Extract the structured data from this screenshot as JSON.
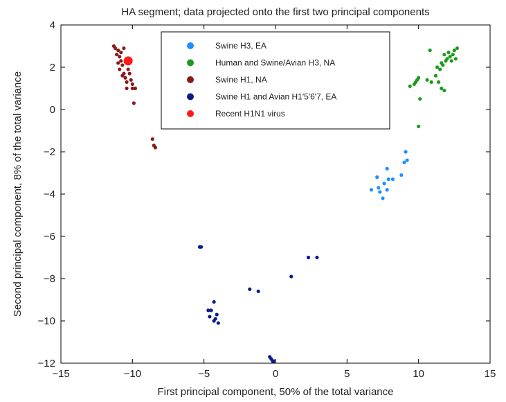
{
  "chart_data": {
    "type": "scatter",
    "title": "HA segment; data projected onto the first two principal components",
    "xlabel": "First principal component, 50% of the total variance",
    "ylabel": "Second principal component, 8% of the total variance",
    "xlim": [
      -15,
      15
    ],
    "ylim": [
      -12,
      4
    ],
    "xticks": [
      -15,
      -10,
      -5,
      0,
      5,
      10,
      15
    ],
    "yticks": [
      -12,
      -10,
      -8,
      -6,
      -4,
      -2,
      0,
      2,
      4
    ],
    "grid": false,
    "legend_position": "top",
    "series": [
      {
        "name": "Swine H3, EA",
        "color": "#1f8fff",
        "points": [
          [
            6.7,
            -3.8
          ],
          [
            7.1,
            -3.2
          ],
          [
            7.2,
            -3.7
          ],
          [
            7.3,
            -3.9
          ],
          [
            7.5,
            -4.2
          ],
          [
            7.6,
            -3.5
          ],
          [
            7.8,
            -3.8
          ],
          [
            7.9,
            -3.3
          ],
          [
            7.8,
            -2.8
          ],
          [
            8.2,
            -3.3
          ],
          [
            8.8,
            -3.1
          ],
          [
            9.0,
            -2.5
          ],
          [
            9.2,
            -2.4
          ],
          [
            9.1,
            -2.0
          ]
        ]
      },
      {
        "name": "Human and Swine/Avian H3, NA",
        "color": "#1f9a1f",
        "points": [
          [
            10.0,
            -0.8
          ],
          [
            10.1,
            0.5
          ],
          [
            9.8,
            1.3
          ],
          [
            9.9,
            1.4
          ],
          [
            10.0,
            1.5
          ],
          [
            9.4,
            1.1
          ],
          [
            9.7,
            1.2
          ],
          [
            10.6,
            1.4
          ],
          [
            10.8,
            2.8
          ],
          [
            10.9,
            1.3
          ],
          [
            11.2,
            1.6
          ],
          [
            11.6,
            1.0
          ],
          [
            11.8,
            0.9
          ],
          [
            11.5,
            1.9
          ],
          [
            11.7,
            2.1
          ],
          [
            11.9,
            2.3
          ],
          [
            11.8,
            2.6
          ],
          [
            12.0,
            2.4
          ],
          [
            12.1,
            2.7
          ],
          [
            12.2,
            2.5
          ],
          [
            12.3,
            2.3
          ],
          [
            12.4,
            2.6
          ],
          [
            12.5,
            2.8
          ],
          [
            12.6,
            2.4
          ],
          [
            12.7,
            2.9
          ],
          [
            11.4,
            1.3
          ],
          [
            11.3,
            2.0
          ],
          [
            11.6,
            2.2
          ]
        ]
      },
      {
        "name": "Swine H1, NA",
        "color": "#8b1a1a",
        "points": [
          [
            -11.3,
            3.0
          ],
          [
            -11.2,
            2.9
          ],
          [
            -11.0,
            2.8
          ],
          [
            -11.1,
            2.6
          ],
          [
            -10.9,
            2.5
          ],
          [
            -10.8,
            2.3
          ],
          [
            -10.7,
            2.1
          ],
          [
            -11.0,
            2.2
          ],
          [
            -10.9,
            1.9
          ],
          [
            -10.6,
            1.7
          ],
          [
            -10.5,
            1.5
          ],
          [
            -10.4,
            1.3
          ],
          [
            -10.7,
            1.6
          ],
          [
            -10.3,
            1.9
          ],
          [
            -10.2,
            1.7
          ],
          [
            -10.1,
            1.4
          ],
          [
            -10.0,
            1.2
          ],
          [
            -10.4,
            1.0
          ],
          [
            -10.0,
            1.0
          ],
          [
            -9.8,
            1.0
          ],
          [
            -9.9,
            0.3
          ],
          [
            -8.6,
            -1.4
          ],
          [
            -8.5,
            -1.7
          ],
          [
            -8.4,
            -1.8
          ],
          [
            -10.6,
            2.9
          ],
          [
            -10.8,
            2.7
          ]
        ]
      },
      {
        "name": "Swine H1 and Avian H1'5'6'7, EA",
        "color": "#0d1a8c",
        "points": [
          [
            -5.3,
            -6.5
          ],
          [
            -5.2,
            -6.5
          ],
          [
            -4.5,
            -9.5
          ],
          [
            -4.3,
            -9.1
          ],
          [
            -4.6,
            -9.8
          ],
          [
            -4.2,
            -9.9
          ],
          [
            -4.0,
            -10.1
          ],
          [
            -4.3,
            -10.0
          ],
          [
            -4.1,
            -9.7
          ],
          [
            -1.8,
            -8.5
          ],
          [
            -1.2,
            -8.6
          ],
          [
            1.1,
            -7.9
          ],
          [
            2.3,
            -7.0
          ],
          [
            2.9,
            -7.0
          ],
          [
            -0.4,
            -11.7
          ],
          [
            -0.3,
            -11.8
          ],
          [
            -0.2,
            -11.9
          ],
          [
            -0.1,
            -11.9
          ],
          [
            -4.7,
            -9.5
          ]
        ]
      },
      {
        "name": "Recent H1N1 virus",
        "color": "#ff1a1a",
        "points": [
          [
            -10.3,
            2.3
          ]
        ]
      }
    ]
  }
}
